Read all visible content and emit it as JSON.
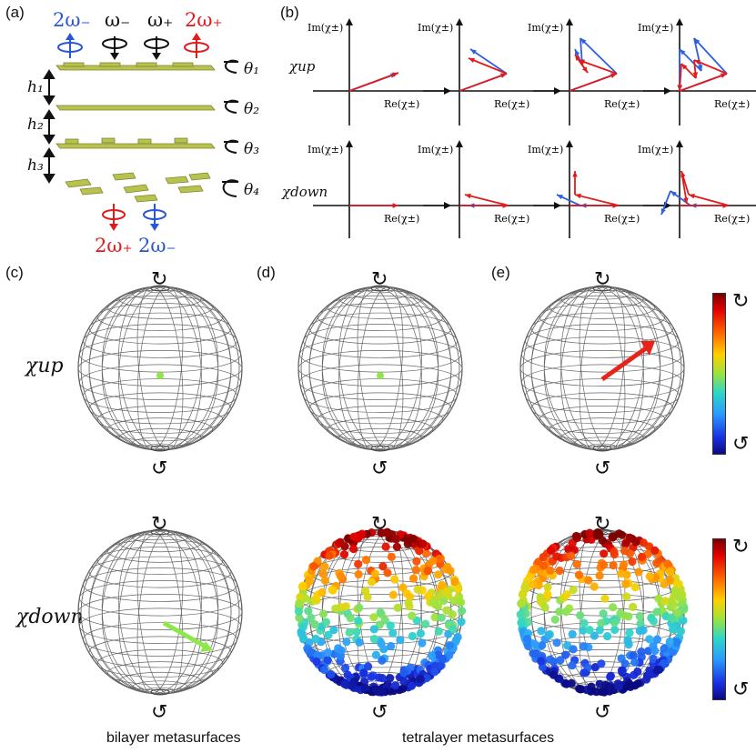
{
  "figure": {
    "panel_labels": {
      "a": "(a)",
      "b": "(b)",
      "c": "(c)",
      "d": "(d)",
      "e": "(e)"
    },
    "panel_a": {
      "top_freqs": [
        {
          "text": "2ω₋",
          "color": "#2756d6"
        },
        {
          "text": "ω₋",
          "color": "#111111"
        },
        {
          "text": "ω₊",
          "color": "#111111"
        },
        {
          "text": "2ω₊",
          "color": "#e01b1b"
        }
      ],
      "bottom_freqs": [
        {
          "text": "2ω₊",
          "color": "#e01b1b"
        },
        {
          "text": "2ω₋",
          "color": "#2756d6"
        }
      ],
      "heights": [
        "h₁",
        "h₂",
        "h₃"
      ],
      "angles": [
        "θ₁",
        "θ₂",
        "θ₃",
        "θ₄"
      ],
      "layer_color": "#b8c24e"
    },
    "panel_b": {
      "row_labels": [
        "χup",
        "χdown"
      ],
      "axis_im": "Im(χ±)",
      "axis_re": "Re(χ±)",
      "blue": "#2f5fe0",
      "red": "#e01b1b"
    },
    "sphere_top_symbol": "↻",
    "sphere_bottom_symbol": "↺",
    "row_labels_sphere": [
      "χup",
      "χdown"
    ],
    "colorbar_top_symbol": "↻",
    "colorbar_bottom_symbol": "↺",
    "captions": {
      "bilayer": "bilayer metasurfaces",
      "tetralayer": "tetralayer metasurfaces"
    }
  }
}
